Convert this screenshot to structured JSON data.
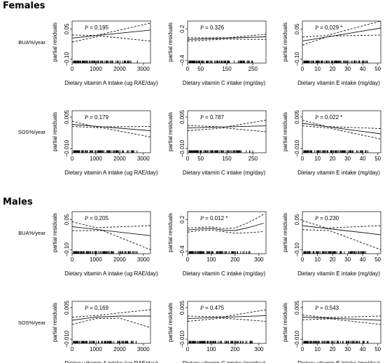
{
  "sections": [
    {
      "title": "Females"
    },
    {
      "title": "Males"
    }
  ],
  "chart_data": [
    {
      "type": "line",
      "panel": "females-bua-vitA",
      "row_label": "BUA%/year",
      "ylabel": "partial residuals",
      "xlabel": "Dietary vitamin A intake (ug RAE/day)",
      "p_value": "0.195",
      "significant": false,
      "xlim": [
        0,
        3300
      ],
      "ylim": [
        -0.12,
        0.09
      ],
      "x_ticks": [
        0,
        1000,
        2000,
        3000
      ],
      "y_ticks": [
        -0.1,
        0.05
      ],
      "y_tick_labels": [
        "-0.10",
        "0.05"
      ],
      "fit": [
        [
          0,
          0.005
        ],
        [
          3300,
          0.045
        ]
      ],
      "lower": [
        [
          0,
          -0.015
        ],
        [
          1200,
          0.015
        ],
        [
          3300,
          -0.01
        ]
      ],
      "upper": [
        [
          0,
          0.02
        ],
        [
          1000,
          0.018
        ],
        [
          3300,
          0.08
        ]
      ]
    },
    {
      "type": "line",
      "panel": "females-bua-vitC",
      "row_label": "",
      "ylabel": "partial residuals",
      "xlabel": "Dietary vitamin C intake (mg/day)",
      "p_value": "0.326",
      "significant": false,
      "xlim": [
        0,
        300
      ],
      "ylim": [
        -0.45,
        0.35
      ],
      "x_ticks": [
        0,
        50,
        150,
        250
      ],
      "y_ticks": [
        -0.4,
        0.2
      ],
      "y_tick_labels": [
        "-0.4",
        "0.2"
      ],
      "fit": [
        [
          0,
          0.0
        ],
        [
          300,
          0.05
        ]
      ],
      "lower": [
        [
          0,
          -0.03
        ],
        [
          150,
          0.005
        ],
        [
          300,
          0.0
        ]
      ],
      "upper": [
        [
          0,
          0.03
        ],
        [
          150,
          0.03
        ],
        [
          300,
          0.1
        ]
      ]
    },
    {
      "type": "line",
      "panel": "females-bua-vitE",
      "row_label": "",
      "ylabel": "partial residuals",
      "xlabel": "Dietary vitamin E intake (mg/day)",
      "p_value": "0.029",
      "significant": true,
      "xlim": [
        0,
        52
      ],
      "ylim": [
        -0.12,
        0.09
      ],
      "x_ticks": [
        0,
        10,
        20,
        30,
        40,
        50
      ],
      "y_ticks": [
        -0.1,
        0.05
      ],
      "y_tick_labels": [
        "-0.10",
        "0.05"
      ],
      "fit": [
        [
          0,
          -0.01
        ],
        [
          52,
          0.055
        ]
      ],
      "lower": [
        [
          0,
          -0.03
        ],
        [
          18,
          0.015
        ],
        [
          52,
          0.02
        ]
      ],
      "upper": [
        [
          0,
          0.01
        ],
        [
          16,
          0.018
        ],
        [
          52,
          0.09
        ]
      ]
    },
    {
      "type": "line",
      "panel": "females-sos-vitA",
      "row_label": "SOS%/year",
      "ylabel": "partial residuals",
      "xlabel": "Dietary vitamin A intake (ug RAE/day)",
      "p_value": "0.179",
      "significant": false,
      "xlim": [
        0,
        3300
      ],
      "ylim": [
        -0.012,
        0.008
      ],
      "x_ticks": [
        0,
        1000,
        2000,
        3000
      ],
      "y_ticks": [
        -0.01,
        0.005
      ],
      "y_tick_labels": [
        "-0.010",
        "0.005"
      ],
      "fit": [
        [
          0,
          0.0015
        ],
        [
          3300,
          -0.0015
        ]
      ],
      "lower": [
        [
          0,
          0.0005
        ],
        [
          1300,
          -0.0002
        ],
        [
          3300,
          -0.0045
        ]
      ],
      "upper": [
        [
          0,
          0.003
        ],
        [
          1000,
          0.0003
        ],
        [
          3300,
          0.0005
        ]
      ]
    },
    {
      "type": "line",
      "panel": "females-sos-vitC",
      "row_label": "",
      "ylabel": "partial residuals",
      "xlabel": "Dietary vitamin C intake (mg/day)",
      "p_value": "0.787",
      "significant": false,
      "xlim": [
        0,
        300
      ],
      "ylim": [
        -0.012,
        0.008
      ],
      "x_ticks": [
        0,
        50,
        150,
        250
      ],
      "y_ticks": [
        -0.01,
        0.005
      ],
      "y_tick_labels": [
        "-0.010",
        "0.005"
      ],
      "fit": [
        [
          0,
          -0.0002
        ],
        [
          300,
          0.0008
        ]
      ],
      "lower": [
        [
          0,
          -0.0015
        ],
        [
          140,
          -0.0002
        ],
        [
          300,
          -0.002
        ]
      ],
      "upper": [
        [
          0,
          0.001
        ],
        [
          140,
          0.0002
        ],
        [
          300,
          0.0035
        ]
      ]
    },
    {
      "type": "line",
      "panel": "females-sos-vitE",
      "row_label": "",
      "ylabel": "partial residuals",
      "xlabel": "Dietary vitamin E intake (mg/day)",
      "p_value": "0.022",
      "significant": true,
      "xlim": [
        0,
        52
      ],
      "ylim": [
        -0.012,
        0.008
      ],
      "x_ticks": [
        0,
        10,
        20,
        30,
        40,
        50
      ],
      "y_ticks": [
        -0.01,
        0.005
      ],
      "y_tick_labels": [
        "-0.010",
        "0.005"
      ],
      "fit": [
        [
          0,
          0.002
        ],
        [
          52,
          -0.003
        ]
      ],
      "lower": [
        [
          0,
          0.0008
        ],
        [
          18,
          -0.0003
        ],
        [
          52,
          -0.0055
        ]
      ],
      "upper": [
        [
          0,
          0.0035
        ],
        [
          16,
          0.0005
        ],
        [
          52,
          -0.0005
        ]
      ]
    },
    {
      "type": "line",
      "panel": "males-bua-vitA",
      "row_label": "BUA%/year",
      "ylabel": "partial residuals",
      "xlabel": "Dietary vitamin A intake (ug RAE/day)",
      "p_value": "0.205",
      "significant": false,
      "xlim": [
        0,
        3300
      ],
      "ylim": [
        -0.12,
        0.09
      ],
      "x_ticks": [
        0,
        1000,
        2000,
        3000
      ],
      "y_ticks": [
        -0.1,
        0.05
      ],
      "y_tick_labels": [
        "-0.10",
        "0.05"
      ],
      "fit": [
        [
          0,
          0.015
        ],
        [
          3300,
          -0.03
        ]
      ],
      "lower": [
        [
          0,
          -0.005
        ],
        [
          1300,
          -0.005
        ],
        [
          3300,
          -0.1
        ]
      ],
      "upper": [
        [
          0,
          0.04
        ],
        [
          1000,
          0.01
        ],
        [
          3300,
          0.02
        ]
      ]
    },
    {
      "type": "line",
      "panel": "males-bua-vitC",
      "row_label": "",
      "ylabel": "partial residuals",
      "xlabel": "Dietary vitamin C intake (mg/day)",
      "p_value": "0.012",
      "significant": true,
      "xlim": [
        0,
        330
      ],
      "ylim": [
        -0.45,
        0.35
      ],
      "x_ticks": [
        0,
        100,
        200,
        300
      ],
      "y_ticks": [
        -0.4,
        0.2
      ],
      "y_tick_labels": [
        "-0.4",
        "0.2"
      ],
      "fit": [
        [
          0,
          0.0
        ],
        [
          50,
          0.02
        ],
        [
          100,
          0.03
        ],
        [
          150,
          0.0
        ],
        [
          200,
          -0.01
        ],
        [
          260,
          0.05
        ],
        [
          320,
          0.13
        ]
      ],
      "lower": [
        [
          0,
          -0.04
        ],
        [
          50,
          -0.01
        ],
        [
          100,
          0.0
        ],
        [
          150,
          -0.03
        ],
        [
          200,
          -0.06
        ],
        [
          260,
          -0.05
        ],
        [
          320,
          -0.03
        ]
      ],
      "upper": [
        [
          0,
          0.04
        ],
        [
          50,
          0.05
        ],
        [
          100,
          0.06
        ],
        [
          150,
          0.03
        ],
        [
          200,
          0.04
        ],
        [
          260,
          0.15
        ],
        [
          320,
          0.3
        ]
      ]
    },
    {
      "type": "line",
      "panel": "males-bua-vitE",
      "row_label": "",
      "ylabel": "partial residuals",
      "xlabel": "Dietary vitamin E intake (mg/day)",
      "p_value": "0.230",
      "significant": false,
      "xlim": [
        0,
        52
      ],
      "ylim": [
        -0.12,
        0.09
      ],
      "x_ticks": [
        0,
        10,
        20,
        30,
        40,
        50
      ],
      "y_ticks": [
        -0.1,
        0.05
      ],
      "y_tick_labels": [
        "-0.10",
        "0.05"
      ],
      "fit": [
        [
          0,
          0.02
        ],
        [
          52,
          -0.025
        ]
      ],
      "lower": [
        [
          0,
          0.0
        ],
        [
          18,
          -0.005
        ],
        [
          52,
          -0.1
        ]
      ],
      "upper": [
        [
          0,
          0.045
        ],
        [
          16,
          0.008
        ],
        [
          52,
          0.02
        ]
      ]
    },
    {
      "type": "line",
      "panel": "males-sos-vitA",
      "row_label": "SOS%/year",
      "ylabel": "partial residuals",
      "xlabel": "Dietary vitamin A intake (ug RAE/day)",
      "p_value": "0.169",
      "significant": false,
      "xlim": [
        0,
        3300
      ],
      "ylim": [
        -0.012,
        0.008
      ],
      "x_ticks": [
        0,
        1000,
        2000,
        3000
      ],
      "y_ticks": [
        -0.01,
        0.005
      ],
      "y_tick_labels": [
        "-0.010",
        "0.005"
      ],
      "fit": [
        [
          0,
          -0.001
        ],
        [
          1000,
          0.0005
        ],
        [
          2000,
          0.001
        ],
        [
          3300,
          0.001
        ]
      ],
      "lower": [
        [
          0,
          -0.003
        ],
        [
          1000,
          -0.0002
        ],
        [
          2000,
          0.0
        ],
        [
          3300,
          -0.0045
        ]
      ],
      "upper": [
        [
          0,
          0.0005
        ],
        [
          1000,
          0.0012
        ],
        [
          2000,
          0.0025
        ],
        [
          3300,
          0.004
        ]
      ]
    },
    {
      "type": "line",
      "panel": "males-sos-vitC",
      "row_label": "",
      "ylabel": "partial residuals",
      "xlabel": "Dietary vitamin C intake (mg/day)",
      "p_value": "0.475",
      "significant": false,
      "xlim": [
        0,
        330
      ],
      "ylim": [
        -0.012,
        0.008
      ],
      "x_ticks": [
        0,
        100,
        200,
        300
      ],
      "y_ticks": [
        -0.01,
        0.005
      ],
      "y_tick_labels": [
        "-0.010",
        "0.005"
      ],
      "fit": [
        [
          0,
          -0.0002
        ],
        [
          330,
          0.0012
        ]
      ],
      "lower": [
        [
          0,
          -0.0015
        ],
        [
          150,
          0.0
        ],
        [
          330,
          -0.0015
        ]
      ],
      "upper": [
        [
          0,
          0.001
        ],
        [
          150,
          0.0006
        ],
        [
          330,
          0.004
        ]
      ]
    },
    {
      "type": "line",
      "panel": "males-sos-vitE",
      "row_label": "",
      "ylabel": "partial residuals",
      "xlabel": "Dietary vitamin E intake (mg/day)",
      "p_value": "0.543",
      "significant": false,
      "xlim": [
        0,
        52
      ],
      "ylim": [
        -0.012,
        0.008
      ],
      "x_ticks": [
        0,
        10,
        20,
        30,
        40,
        50
      ],
      "y_ticks": [
        -0.01,
        0.005
      ],
      "y_tick_labels": [
        "-0.010",
        "0.005"
      ],
      "fit": [
        [
          0,
          0.0005
        ],
        [
          52,
          -0.001
        ]
      ],
      "lower": [
        [
          0,
          -0.0008
        ],
        [
          18,
          -0.0003
        ],
        [
          52,
          -0.003
        ]
      ],
      "upper": [
        [
          0,
          0.0015
        ],
        [
          16,
          0.0003
        ],
        [
          52,
          0.001
        ]
      ]
    }
  ]
}
